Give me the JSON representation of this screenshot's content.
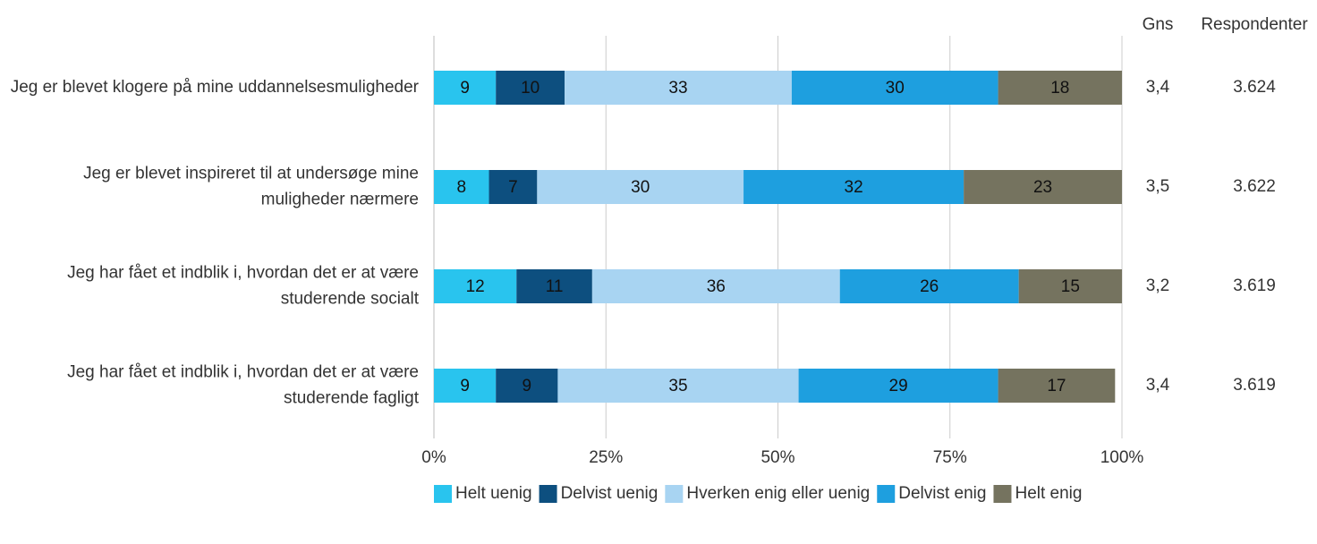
{
  "chart_data": {
    "type": "stacked-bar-horizontal",
    "categories": [
      "Jeg er blevet klogere på mine uddannelsesmuligheder",
      "Jeg er blevet inspireret til at undersøge mine muligheder nærmere",
      "Jeg har fået et indblik i, hvordan det er at være studerende socialt",
      "Jeg har fået et indblik i, hvordan det er at være studerende fagligt"
    ],
    "series": [
      {
        "name": "Helt uenig",
        "color": "#29c4ee",
        "values": [
          9,
          8,
          12,
          9
        ]
      },
      {
        "name": "Delvist uenig",
        "color": "#0d4f7f",
        "values": [
          10,
          7,
          11,
          9
        ]
      },
      {
        "name": "Hverken enig eller uenig",
        "color": "#a8d4f2",
        "values": [
          33,
          30,
          36,
          35
        ]
      },
      {
        "name": "Delvist enig",
        "color": "#1e9fdf",
        "values": [
          30,
          32,
          26,
          29
        ]
      },
      {
        "name": "Helt enig",
        "color": "#75735f",
        "values": [
          18,
          23,
          15,
          17
        ]
      }
    ],
    "columns": [
      {
        "name": "Gns",
        "values": [
          3.4,
          3.5,
          3.2,
          3.4
        ],
        "value_labels": [
          "3,4",
          "3,5",
          "3,2",
          "3,4"
        ]
      },
      {
        "name": "Respondenter",
        "values": [
          3624,
          3622,
          3619,
          3619
        ],
        "value_labels": [
          "3.624",
          "3.622",
          "3.619",
          "3.619"
        ]
      }
    ],
    "xlim": [
      0,
      100
    ],
    "xticks": [
      {
        "value": 0,
        "label": "0%"
      },
      {
        "value": 25,
        "label": "25%"
      },
      {
        "value": 50,
        "label": "50%"
      },
      {
        "value": 75,
        "label": "75%"
      },
      {
        "value": 100,
        "label": "100%"
      }
    ],
    "grid": true,
    "legend": "bottom"
  }
}
